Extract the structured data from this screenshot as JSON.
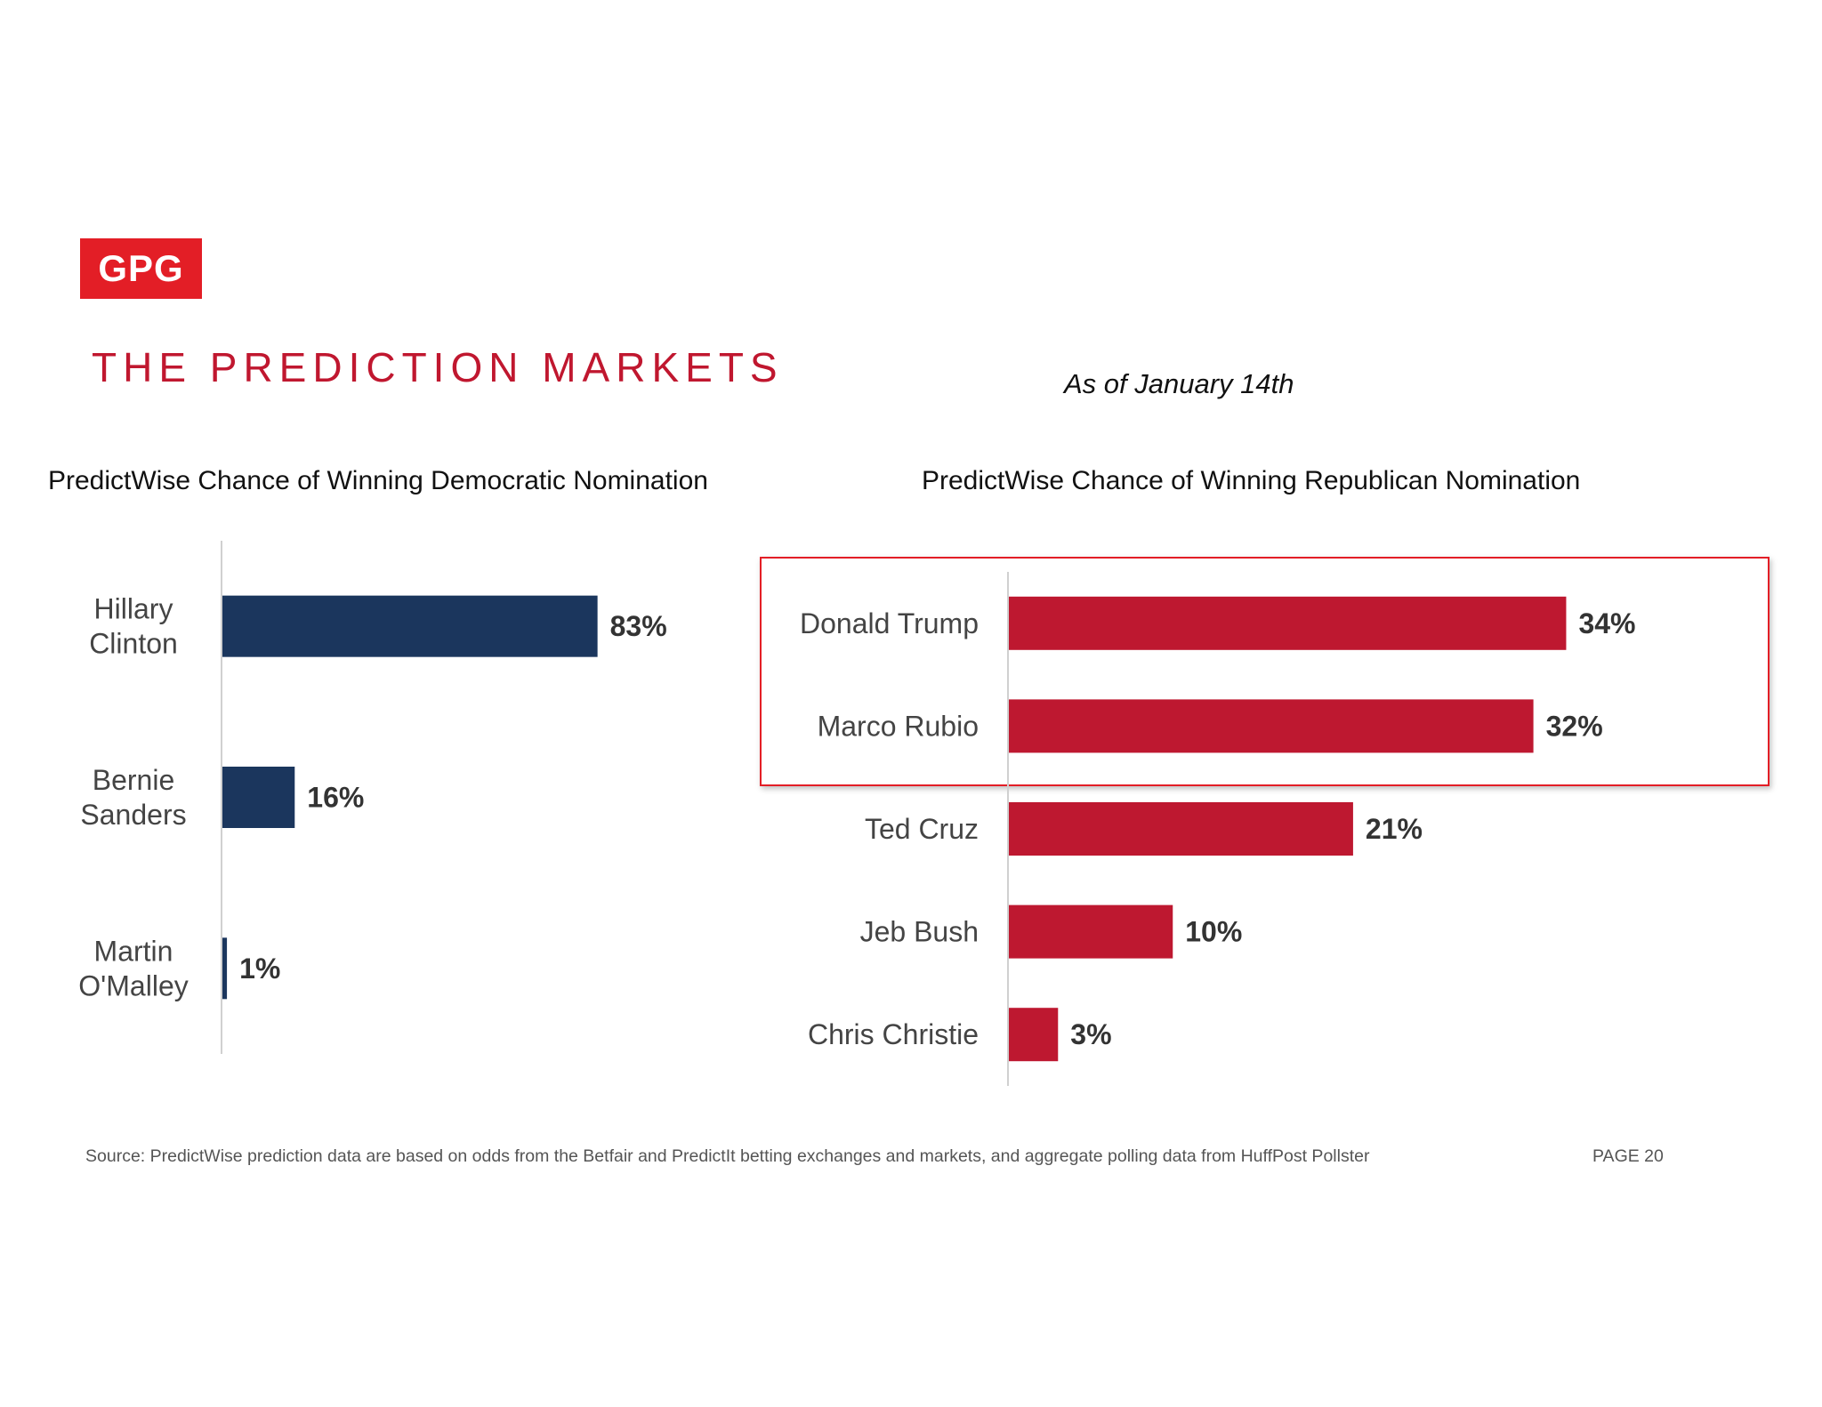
{
  "logo": {
    "text": "GPG"
  },
  "slide": {
    "title": "THE PREDICTION MARKETS",
    "as_of": "As of January 14th",
    "source": "Source: PredictWise prediction data are based on odds from the Betfair and PredictIt betting exchanges and markets, and aggregate polling data from HuffPost Pollster",
    "page": "PAGE 20"
  },
  "colors": {
    "accent": "#c0172f",
    "democratic_bar": "#1b365d",
    "republican_bar": "#be1830",
    "highlight_border": "#e31e26"
  },
  "chart_data": [
    {
      "type": "bar",
      "orientation": "horizontal",
      "title": "PredictWise Chance of Winning Democratic Nomination",
      "categories": [
        [
          "Hillary",
          "Clinton"
        ],
        [
          "Bernie",
          "Sanders"
        ],
        [
          "Martin",
          "O'Malley"
        ]
      ],
      "values": [
        83,
        16,
        1
      ],
      "value_labels": [
        "83%",
        "16%",
        "1%"
      ],
      "unit": "%",
      "xlim": [
        0,
        100
      ],
      "grid": false,
      "legend": "none"
    },
    {
      "type": "bar",
      "orientation": "horizontal",
      "title": "PredictWise Chance of Winning Republican Nomination",
      "categories": [
        [
          "Donald Trump"
        ],
        [
          "Marco Rubio"
        ],
        [
          "Ted Cruz"
        ],
        [
          "Jeb Bush"
        ],
        [
          "Chris Christie"
        ]
      ],
      "values": [
        34,
        32,
        21,
        10,
        3
      ],
      "value_labels": [
        "34%",
        "32%",
        "21%",
        "10%",
        "3%"
      ],
      "unit": "%",
      "xlim": [
        0,
        40
      ],
      "grid": false,
      "legend": "none",
      "highlighted_categories": [
        "Donald Trump",
        "Marco Rubio"
      ]
    }
  ]
}
